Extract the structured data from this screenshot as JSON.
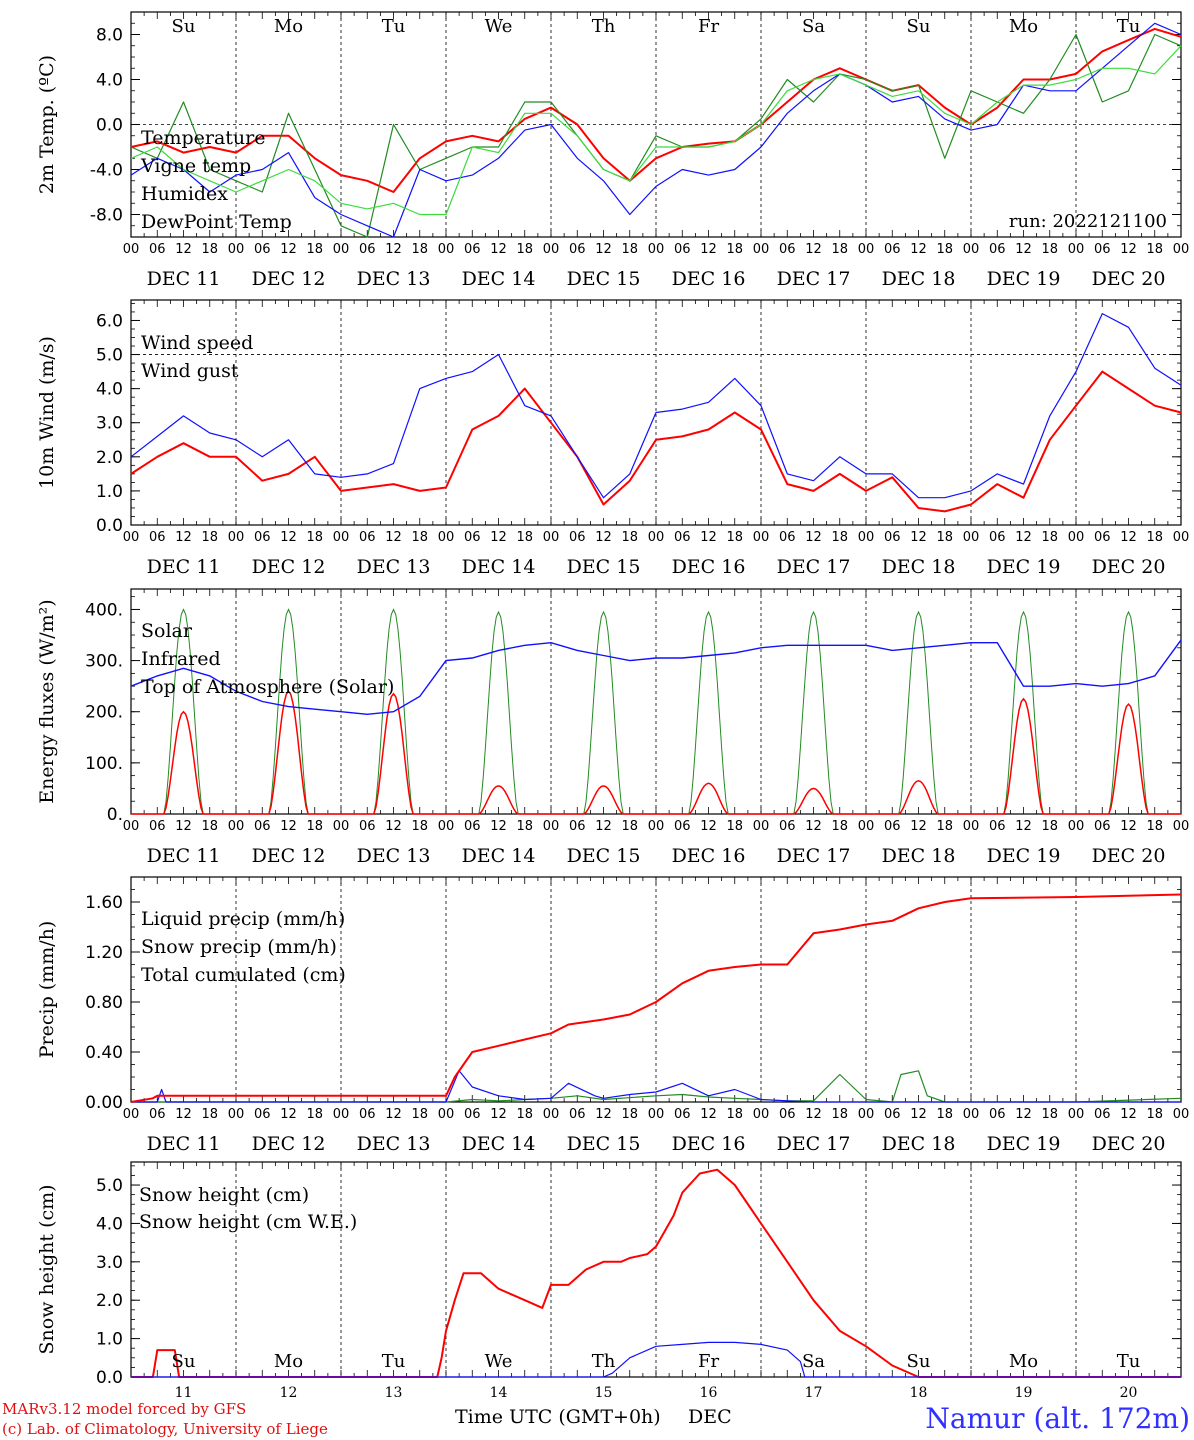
{
  "colors": {
    "red": "#ff0000",
    "green": "#228b22",
    "lightgreen": "#3cdc3c",
    "blue": "#1010ff",
    "black": "#000000",
    "footer_red": "#e01010",
    "station_blue": "#3030ff"
  },
  "x_axis": {
    "date_labels": [
      "DEC 11",
      "DEC 12",
      "DEC 13",
      "DEC 14",
      "DEC 15",
      "DEC 16",
      "DEC 17",
      "DEC 18",
      "DEC 19",
      "DEC 20"
    ],
    "hour_labels": [
      "00",
      "06",
      "12",
      "18"
    ],
    "last_hour_label": "00",
    "weekdays": [
      "Su",
      "Mo",
      "Tu",
      "We",
      "Th",
      "Fr",
      "Sa",
      "Su",
      "Mo",
      "Tu"
    ],
    "weekday_red": [
      true,
      false,
      false,
      false,
      false,
      false,
      true,
      true,
      false,
      false
    ],
    "bottom_day_numbers": [
      "11",
      "12",
      "13",
      "14",
      "15",
      "16",
      "17",
      "18",
      "19",
      "20"
    ],
    "xlabel": "Time UTC (GMT+0h)",
    "month": "DEC"
  },
  "footer": {
    "model_line": "MARv3.12 model forced by GFS",
    "lab_line": "(c) Lab. of Climatology, University of Liege",
    "station": "Namur (alt. 172m)"
  },
  "chart_data": [
    {
      "type": "line",
      "ylabel": "2m Temp. (ºC)",
      "ylim": [
        -10,
        10
      ],
      "yticks": [
        "8.0",
        "4.0",
        "0.0",
        "-4.0",
        "-8.0"
      ],
      "ytick_values": [
        8,
        4,
        0,
        -4,
        -8
      ],
      "zero_line": 0,
      "run_label": "run: 2022121100",
      "x_unit": "hours since DEC 11 00 UTC",
      "series": [
        {
          "name": "Temperature",
          "color": "red",
          "x": [
            0,
            6,
            12,
            18,
            24,
            30,
            36,
            42,
            48,
            54,
            60,
            66,
            72,
            78,
            84,
            90,
            96,
            102,
            108,
            114,
            120,
            126,
            132,
            138,
            144,
            150,
            156,
            162,
            168,
            174,
            180,
            186,
            192,
            198,
            204,
            210,
            216,
            222,
            228,
            234,
            240
          ],
          "y": [
            -2,
            -1.5,
            -2.5,
            -2,
            -2.5,
            -1,
            -1,
            -3,
            -4.5,
            -5,
            -6,
            -3,
            -1.5,
            -1,
            -1.5,
            0.5,
            1.5,
            0,
            -3,
            -5,
            -3,
            -2,
            -1.7,
            -1.5,
            0,
            2,
            4,
            5,
            4,
            3,
            3.5,
            1.5,
            0,
            1.5,
            4,
            4,
            4.5,
            6.5,
            7.5,
            8.5,
            7.8
          ]
        },
        {
          "name": "Vigne temp",
          "color": "green",
          "x": [
            0,
            6,
            12,
            18,
            24,
            30,
            36,
            42,
            48,
            54,
            60,
            66,
            72,
            78,
            84,
            90,
            96,
            102,
            108,
            114,
            120,
            126,
            132,
            138,
            144,
            150,
            156,
            162,
            168,
            174,
            180,
            186,
            192,
            198,
            204,
            210,
            216,
            222,
            228,
            234,
            240
          ],
          "y": [
            -2,
            -3,
            2,
            -4,
            -5,
            -6,
            1,
            -4,
            -9,
            -10,
            0,
            -4,
            -3,
            -2,
            -2,
            2,
            2,
            -1,
            -4,
            -5,
            -1,
            -2,
            -2,
            -1.5,
            0.5,
            4,
            2,
            4.5,
            4,
            3,
            3.5,
            -3,
            3,
            2,
            1,
            4,
            8,
            2,
            3,
            8,
            7
          ]
        },
        {
          "name": "Humidex",
          "color": "blue",
          "x": [
            0,
            6,
            12,
            18,
            24,
            30,
            36,
            42,
            48,
            54,
            60,
            66,
            72,
            78,
            84,
            90,
            96,
            102,
            108,
            114,
            120,
            126,
            132,
            138,
            144,
            150,
            156,
            162,
            168,
            174,
            180,
            186,
            192,
            198,
            204,
            210,
            216,
            222,
            228,
            234,
            240
          ],
          "y": [
            -4.5,
            -3,
            -4,
            -6,
            -4.5,
            -4,
            -2.5,
            -6.5,
            -8,
            -9,
            -10,
            -4,
            -5,
            -4.5,
            -3,
            -0.5,
            0,
            -3,
            -5,
            -8,
            -5.5,
            -4,
            -4.5,
            -4,
            -2,
            1,
            3,
            4.5,
            3.5,
            2,
            2.5,
            0.5,
            -0.5,
            0,
            3.5,
            3,
            3,
            5,
            7,
            9,
            8
          ]
        },
        {
          "name": "DewPoint Temp",
          "color": "lightgreen",
          "x": [
            0,
            6,
            12,
            18,
            24,
            30,
            36,
            42,
            48,
            54,
            60,
            66,
            72,
            78,
            84,
            90,
            96,
            102,
            108,
            114,
            120,
            126,
            132,
            138,
            144,
            150,
            156,
            162,
            168,
            174,
            180,
            186,
            192,
            198,
            204,
            210,
            216,
            222,
            228,
            234,
            240
          ],
          "y": [
            -3,
            -2,
            -4,
            -5,
            -6,
            -5,
            -4,
            -5,
            -7,
            -7.5,
            -7,
            -8,
            -8,
            -2,
            -2.5,
            1,
            1,
            -1,
            -4,
            -5,
            -2,
            -2,
            -2,
            -1.5,
            0,
            3,
            4,
            4.5,
            3.5,
            2.5,
            3,
            1,
            0,
            2,
            3.5,
            3.5,
            4,
            5,
            5,
            4.5,
            7
          ]
        }
      ]
    },
    {
      "type": "line",
      "ylabel": "10m Wind (m/s)",
      "ylim": [
        0,
        6.6
      ],
      "yticks": [
        "6.0",
        "5.0",
        "4.0",
        "3.0",
        "2.0",
        "1.0",
        "0.0"
      ],
      "ytick_values": [
        6,
        5,
        4,
        3,
        2,
        1,
        0
      ],
      "ref_line": 5,
      "x_unit": "hours since DEC 11 00 UTC",
      "series": [
        {
          "name": "Wind speed",
          "color": "red",
          "x": [
            0,
            6,
            12,
            18,
            24,
            30,
            36,
            42,
            48,
            54,
            60,
            66,
            72,
            78,
            84,
            90,
            96,
            102,
            108,
            114,
            120,
            126,
            132,
            138,
            144,
            150,
            156,
            162,
            168,
            174,
            180,
            186,
            192,
            198,
            204,
            210,
            216,
            222,
            228,
            234,
            240
          ],
          "y": [
            1.5,
            2,
            2.4,
            2,
            2,
            1.3,
            1.5,
            2,
            1,
            1.1,
            1.2,
            1,
            1.1,
            2.8,
            3.2,
            4,
            3,
            2,
            0.6,
            1.3,
            2.5,
            2.6,
            2.8,
            3.3,
            2.8,
            1.2,
            1,
            1.5,
            1,
            1.4,
            0.5,
            0.4,
            0.6,
            1.2,
            0.8,
            2.5,
            3.5,
            4.5,
            4,
            3.5,
            3.3
          ]
        },
        {
          "name": "Wind gust",
          "color": "blue",
          "x": [
            0,
            6,
            12,
            18,
            24,
            30,
            36,
            42,
            48,
            54,
            60,
            66,
            72,
            78,
            84,
            90,
            96,
            102,
            108,
            114,
            120,
            126,
            132,
            138,
            144,
            150,
            156,
            162,
            168,
            174,
            180,
            186,
            192,
            198,
            204,
            210,
            216,
            222,
            228,
            234,
            240
          ],
          "y": [
            2,
            2.6,
            3.2,
            2.7,
            2.5,
            2,
            2.5,
            1.5,
            1.4,
            1.5,
            1.8,
            4,
            4.3,
            4.5,
            5,
            3.5,
            3.2,
            2,
            0.8,
            1.5,
            3.3,
            3.4,
            3.6,
            4.3,
            3.5,
            1.5,
            1.3,
            2,
            1.5,
            1.5,
            0.8,
            0.8,
            1,
            1.5,
            1.2,
            3.2,
            4.5,
            6.2,
            5.8,
            4.6,
            4.1
          ]
        }
      ]
    },
    {
      "type": "line",
      "ylabel": "Energy fluxes (W/m²)",
      "ylim": [
        0,
        440
      ],
      "yticks": [
        "400.",
        "300.",
        "200.",
        "100.",
        "0."
      ],
      "ytick_values": [
        400,
        300,
        200,
        100,
        0
      ],
      "x_unit": "hours since DEC 11 00 UTC",
      "daily_noon_peaks": {
        "Top of Atmosphere (Solar)": [
          400,
          400,
          400,
          395,
          395,
          395,
          395,
          395,
          395,
          395
        ],
        "Solar": [
          200,
          240,
          235,
          55,
          55,
          60,
          50,
          65,
          225,
          215
        ]
      },
      "series": [
        {
          "name": "Solar",
          "color": "red"
        },
        {
          "name": "Infrared",
          "color": "blue",
          "x": [
            0,
            6,
            12,
            18,
            24,
            30,
            36,
            42,
            48,
            54,
            60,
            66,
            72,
            78,
            84,
            90,
            96,
            102,
            108,
            114,
            120,
            126,
            132,
            138,
            144,
            150,
            156,
            162,
            168,
            174,
            180,
            186,
            192,
            198,
            204,
            210,
            216,
            222,
            228,
            234,
            240
          ],
          "y": [
            250,
            270,
            285,
            270,
            240,
            220,
            210,
            205,
            200,
            195,
            200,
            230,
            300,
            305,
            320,
            330,
            335,
            320,
            310,
            300,
            305,
            305,
            310,
            315,
            325,
            330,
            330,
            330,
            330,
            320,
            325,
            330,
            335,
            335,
            250,
            250,
            255,
            250,
            255,
            270,
            340
          ]
        },
        {
          "name": "Top of Atmosphere (Solar)",
          "color": "green"
        }
      ]
    },
    {
      "type": "line",
      "ylabel": "Precip (mm/h)",
      "ylim": [
        0,
        1.8
      ],
      "yticks": [
        "1.60",
        "1.20",
        "0.80",
        "0.40",
        "0.00"
      ],
      "ytick_values": [
        1.6,
        1.2,
        0.8,
        0.4,
        0.0
      ],
      "x_unit": "hours since DEC 11 00 UTC",
      "series": [
        {
          "name": "Liquid precip (mm/h)",
          "color": "green",
          "x": [
            0,
            24,
            48,
            72,
            78,
            84,
            96,
            102,
            108,
            120,
            126,
            132,
            138,
            144,
            150,
            156,
            162,
            168,
            174,
            176,
            180,
            182,
            186,
            192,
            216,
            240
          ],
          "y": [
            0,
            0,
            0,
            0,
            0.02,
            0.01,
            0.03,
            0.05,
            0.02,
            0.05,
            0.06,
            0.04,
            0.03,
            0.02,
            0.01,
            0.01,
            0.22,
            0.02,
            0,
            0.22,
            0.25,
            0.05,
            0,
            0,
            0,
            0.03
          ]
        },
        {
          "name": "Snow precip (mm/h)",
          "color": "blue",
          "x": [
            0,
            6,
            7,
            8,
            24,
            48,
            72,
            75,
            78,
            84,
            90,
            96,
            100,
            106,
            108,
            114,
            120,
            126,
            132,
            138,
            144,
            150,
            156,
            162,
            168,
            240
          ],
          "y": [
            0,
            0,
            0.1,
            0,
            0,
            0,
            0,
            0.25,
            0.12,
            0.05,
            0.02,
            0.03,
            0.15,
            0.05,
            0.03,
            0.06,
            0.08,
            0.15,
            0.05,
            0.1,
            0.02,
            0.01,
            0,
            0,
            0,
            0
          ]
        },
        {
          "name": "Total cumulated (cm)",
          "color": "red",
          "x": [
            0,
            5,
            6,
            24,
            48,
            72,
            74,
            78,
            84,
            90,
            96,
            100,
            108,
            114,
            120,
            126,
            132,
            138,
            144,
            150,
            156,
            162,
            168,
            174,
            180,
            186,
            192,
            216,
            240
          ],
          "y": [
            0,
            0.03,
            0.05,
            0.05,
            0.05,
            0.05,
            0.2,
            0.4,
            0.45,
            0.5,
            0.55,
            0.62,
            0.66,
            0.7,
            0.8,
            0.95,
            1.05,
            1.08,
            1.1,
            1.1,
            1.35,
            1.38,
            1.42,
            1.45,
            1.55,
            1.6,
            1.63,
            1.64,
            1.66
          ]
        }
      ]
    },
    {
      "type": "line",
      "ylabel": "Snow height (cm)",
      "ylim": [
        0,
        5.6
      ],
      "yticks": [
        "5.0",
        "4.0",
        "3.0",
        "2.0",
        "1.0",
        "0.0"
      ],
      "ytick_values": [
        5,
        4,
        3,
        2,
        1,
        0
      ],
      "x_unit": "hours since DEC 11 00 UTC",
      "series": [
        {
          "name": "Snow height (cm)",
          "color": "red",
          "x": [
            0,
            5,
            6,
            10,
            11,
            24,
            48,
            70,
            71,
            72,
            74,
            76,
            80,
            84,
            90,
            94,
            96,
            100,
            104,
            108,
            112,
            114,
            118,
            120,
            122,
            124,
            126,
            130,
            134,
            138,
            144,
            150,
            156,
            162,
            168,
            174,
            180,
            240
          ],
          "y": [
            0,
            0,
            0.7,
            0.7,
            0,
            0,
            0,
            0,
            0.5,
            1.2,
            2,
            2.7,
            2.7,
            2.3,
            2,
            1.8,
            2.4,
            2.4,
            2.8,
            3,
            3,
            3.1,
            3.2,
            3.4,
            3.8,
            4.2,
            4.8,
            5.3,
            5.4,
            5,
            4,
            3,
            2,
            1.2,
            0.8,
            0.3,
            0,
            0
          ]
        },
        {
          "name": "Snow height (cm W.E.)",
          "color": "blue",
          "x": [
            0,
            108,
            110,
            114,
            120,
            126,
            132,
            138,
            144,
            150,
            153,
            154,
            240
          ],
          "y": [
            0,
            0,
            0.1,
            0.5,
            0.8,
            0.85,
            0.9,
            0.9,
            0.85,
            0.7,
            0.4,
            0,
            0
          ]
        }
      ]
    }
  ]
}
